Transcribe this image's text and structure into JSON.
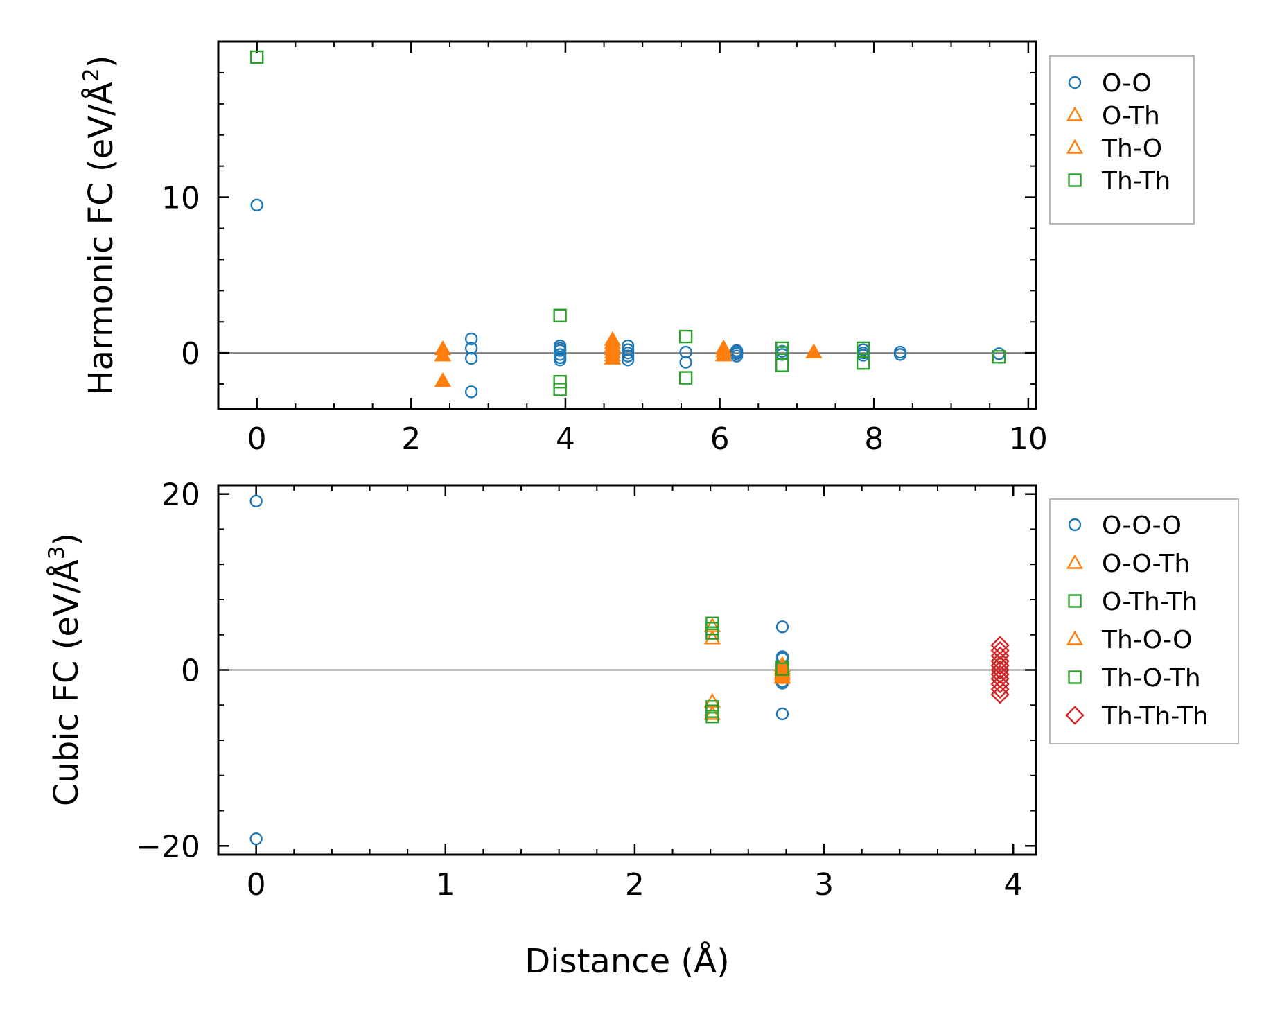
{
  "chart_data": [
    {
      "type": "scatter",
      "ylabel": "Harmonic FC (eV/Å",
      "ylabel_exponent": "2",
      "ylabel_close": ")",
      "xlabel": "",
      "xlim": [
        -0.5,
        10.1
      ],
      "ylim": [
        -3.6,
        20
      ],
      "xticks": [
        0,
        2,
        4,
        6,
        8,
        10
      ],
      "xtick_labels": [
        "0",
        "2",
        "4",
        "6",
        "8",
        "10"
      ],
      "yticks": [
        0,
        10
      ],
      "ytick_labels": [
        "0",
        "10"
      ],
      "x_minor_step": 0.5,
      "y_minor_step": 2,
      "zero_line": true,
      "legend_position": "outside-right-top",
      "series": [
        {
          "name": "O-O",
          "marker": "circle",
          "color": "#1f77b4",
          "filled": false,
          "points": [
            [
              0,
              9.5
            ],
            [
              2.78,
              0.9
            ],
            [
              2.78,
              0.3
            ],
            [
              2.78,
              -0.35
            ],
            [
              2.78,
              -2.5
            ],
            [
              3.93,
              0.45
            ],
            [
              3.93,
              0.3
            ],
            [
              3.93,
              0.15
            ],
            [
              3.93,
              -0.1
            ],
            [
              3.93,
              -0.3
            ],
            [
              3.93,
              -0.45
            ],
            [
              4.81,
              0.45
            ],
            [
              4.81,
              0.2
            ],
            [
              4.81,
              0.0
            ],
            [
              4.81,
              -0.2
            ],
            [
              4.81,
              -0.45
            ],
            [
              5.56,
              0.05
            ],
            [
              5.56,
              -0.6
            ],
            [
              6.22,
              0.15
            ],
            [
              6.22,
              0.05
            ],
            [
              6.22,
              -0.05
            ],
            [
              6.22,
              -0.2
            ],
            [
              6.81,
              0.1
            ],
            [
              6.81,
              -0.1
            ],
            [
              7.86,
              0.2
            ],
            [
              7.86,
              0.0
            ],
            [
              7.86,
              -0.15
            ],
            [
              8.34,
              0.05
            ],
            [
              8.34,
              -0.1
            ],
            [
              9.62,
              -0.05
            ]
          ]
        },
        {
          "name": "O-Th",
          "marker": "triangle",
          "color": "#ff7f0e",
          "filled": true,
          "points": [
            [
              2.41,
              0.25
            ],
            [
              2.41,
              -0.15
            ],
            [
              2.41,
              -1.8
            ],
            [
              4.61,
              0.85
            ],
            [
              4.61,
              0.65
            ],
            [
              4.61,
              0.45
            ],
            [
              4.61,
              0.25
            ],
            [
              4.61,
              0.05
            ],
            [
              4.61,
              -0.15
            ],
            [
              4.61,
              -0.35
            ],
            [
              6.05,
              0.3
            ],
            [
              6.05,
              0.1
            ],
            [
              6.05,
              -0.15
            ],
            [
              7.22,
              0.05
            ]
          ]
        },
        {
          "name": "Th-O",
          "marker": "triangle",
          "color": "#ff7f0e",
          "filled": false,
          "points": [
            [
              2.41,
              0.25
            ],
            [
              2.41,
              -0.15
            ],
            [
              2.41,
              -1.8
            ],
            [
              4.61,
              0.65
            ],
            [
              4.61,
              0.25
            ],
            [
              4.61,
              -0.35
            ],
            [
              6.05,
              0.3
            ],
            [
              6.05,
              -0.15
            ],
            [
              7.22,
              0.05
            ]
          ]
        },
        {
          "name": "Th-Th",
          "marker": "square",
          "color": "#2ca02c",
          "filled": false,
          "points": [
            [
              0,
              19.0
            ],
            [
              3.93,
              2.4
            ],
            [
              3.93,
              -1.85
            ],
            [
              3.93,
              -2.35
            ],
            [
              5.56,
              1.05
            ],
            [
              5.56,
              -1.6
            ],
            [
              6.81,
              0.3
            ],
            [
              6.81,
              0.0
            ],
            [
              6.81,
              -0.8
            ],
            [
              7.86,
              0.3
            ],
            [
              7.86,
              -0.65
            ],
            [
              9.62,
              -0.25
            ]
          ]
        }
      ]
    },
    {
      "type": "scatter",
      "ylabel": "Cubic FC (eV/Å",
      "ylabel_exponent": "3",
      "ylabel_close": ")",
      "xlabel": "Distance (Å)",
      "xlim": [
        -0.2,
        4.12
      ],
      "ylim": [
        -21,
        21
      ],
      "xticks": [
        0,
        1,
        2,
        3,
        4
      ],
      "xtick_labels": [
        "0",
        "1",
        "2",
        "3",
        "4"
      ],
      "yticks": [
        -20,
        0,
        20
      ],
      "ytick_labels": [
        "−20",
        "0",
        "20"
      ],
      "x_minor_step": 0.2,
      "y_minor_step": 4,
      "zero_line": true,
      "legend_position": "outside-right-top",
      "series": [
        {
          "name": "O-O-O",
          "marker": "circle",
          "color": "#1f77b4",
          "filled": false,
          "points": [
            [
              0,
              19.2
            ],
            [
              0,
              -19.2
            ],
            [
              2.78,
              4.9
            ],
            [
              2.78,
              1.5
            ],
            [
              2.78,
              1.3
            ],
            [
              2.78,
              0.2
            ],
            [
              2.78,
              -0.3
            ],
            [
              2.78,
              -1.3
            ],
            [
              2.78,
              -1.5
            ],
            [
              2.78,
              -5.0
            ]
          ]
        },
        {
          "name": "O-O-Th",
          "marker": "triangle",
          "color": "#ff7f0e",
          "filled": false,
          "points": [
            [
              2.41,
              5.0
            ],
            [
              2.41,
              3.6
            ],
            [
              2.41,
              -3.6
            ],
            [
              2.41,
              -5.0
            ],
            [
              2.78,
              0.6
            ],
            [
              2.78,
              0.2
            ],
            [
              2.78,
              -0.3
            ],
            [
              2.78,
              -0.8
            ]
          ]
        },
        {
          "name": "O-Th-Th",
          "marker": "square",
          "color": "#2ca02c",
          "filled": false,
          "points": [
            [
              2.41,
              5.3
            ],
            [
              2.41,
              4.2
            ],
            [
              2.41,
              -4.2
            ],
            [
              2.41,
              -5.3
            ],
            [
              2.78,
              0.3
            ],
            [
              2.78,
              -0.3
            ]
          ]
        },
        {
          "name": "Th-O-O",
          "marker": "triangle",
          "color": "#ff7f0e",
          "filled": true,
          "points": [
            [
              2.78,
              0.5
            ],
            [
              2.78,
              0.0
            ],
            [
              2.78,
              -0.5
            ],
            [
              2.78,
              -0.9
            ]
          ]
        },
        {
          "name": "Th-O-Th",
          "marker": "square",
          "color": "#2ca02c",
          "filled": false,
          "points": [
            [
              2.41,
              4.7
            ],
            [
              2.41,
              -4.7
            ],
            [
              2.78,
              0.1
            ]
          ]
        },
        {
          "name": "Th-Th-Th",
          "marker": "diamond",
          "color": "#d62728",
          "filled": false,
          "points": [
            [
              3.93,
              2.8
            ],
            [
              3.93,
              2.2
            ],
            [
              3.93,
              1.6
            ],
            [
              3.93,
              1.0
            ],
            [
              3.93,
              0.5
            ],
            [
              3.93,
              0.0
            ],
            [
              3.93,
              -0.5
            ],
            [
              3.93,
              -1.0
            ],
            [
              3.93,
              -1.6
            ],
            [
              3.93,
              -2.2
            ],
            [
              3.93,
              -2.8
            ]
          ]
        }
      ]
    }
  ]
}
